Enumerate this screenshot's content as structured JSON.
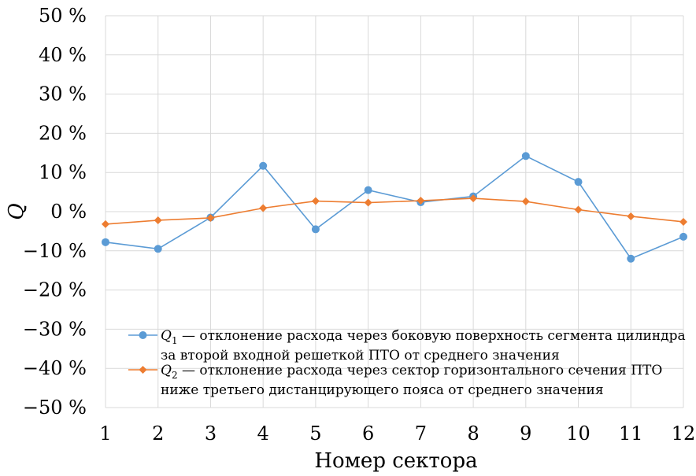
{
  "chart_data": {
    "type": "line",
    "x": [
      1,
      2,
      3,
      4,
      5,
      6,
      7,
      8,
      9,
      10,
      11,
      12
    ],
    "x_tick_labels": [
      "1",
      "2",
      "3",
      "4",
      "5",
      "6",
      "7",
      "8",
      "9",
      "10",
      "11",
      "12"
    ],
    "y_tick_labels": [
      "50 %",
      "40 %",
      "30 %",
      "20 %",
      "10 %",
      "0 %",
      "−10 %",
      "−20 %",
      "−30 %",
      "−40 %",
      "−50 %"
    ],
    "y_ticks": [
      50,
      40,
      30,
      20,
      10,
      0,
      -10,
      -20,
      -30,
      -40,
      -50
    ],
    "ylim": [
      -50,
      50
    ],
    "xlim": [
      1,
      12
    ],
    "xlabel": "Номер сектора",
    "ylabel": "Q",
    "grid": true,
    "legend_position": "bottom-center",
    "series": [
      {
        "name": "Q1",
        "label_symbol": "Q",
        "label_subscript": "1",
        "label_line1": " — отклонение расхода через боковую поверхность сегмента цилиндра",
        "label_line2": "за второй входной решеткой ПТО от среднего значения",
        "marker": "circle",
        "color": "#5B9BD5",
        "values": [
          -7.8,
          -9.5,
          -1.5,
          11.7,
          -4.5,
          5.5,
          2.4,
          3.9,
          14.2,
          7.6,
          -12.0,
          -6.4
        ]
      },
      {
        "name": "Q2",
        "label_symbol": "Q",
        "label_subscript": "2",
        "label_line1": " — отклонение расхода через сектор горизонтального сечения ПТО",
        "label_line2": "ниже третьего дистанцирующего пояса от среднего значения",
        "marker": "diamond",
        "color": "#ED7D31",
        "values": [
          -3.2,
          -2.2,
          -1.6,
          0.9,
          2.7,
          2.3,
          2.8,
          3.4,
          2.6,
          0.5,
          -1.2,
          -2.6
        ]
      }
    ]
  }
}
